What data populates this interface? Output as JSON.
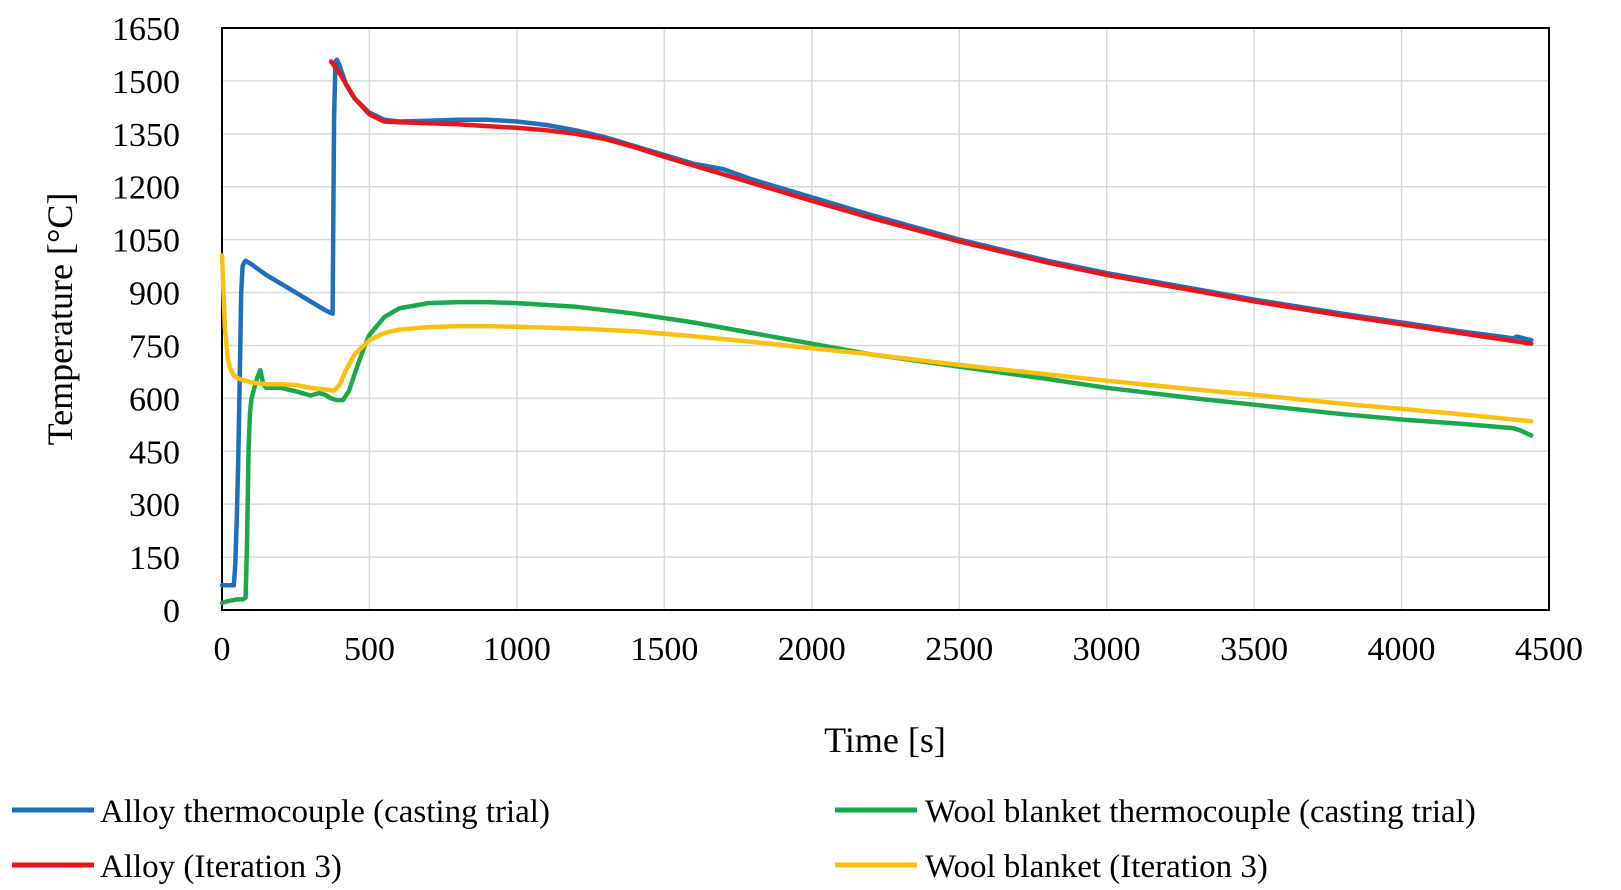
{
  "chart_data": {
    "type": "line",
    "title": "",
    "xlabel": "Time [s]",
    "ylabel": "Temperature [°C]",
    "xlim": [
      0,
      4500
    ],
    "ylim": [
      0,
      1650
    ],
    "xticks": [
      0,
      500,
      1000,
      1500,
      2000,
      2500,
      3000,
      3500,
      4000,
      4500
    ],
    "yticks": [
      0,
      150,
      300,
      450,
      600,
      750,
      900,
      1050,
      1200,
      1350,
      1500,
      1650
    ],
    "xtick_labels": [
      "0",
      "500",
      "1000",
      "1500",
      "2000",
      "2500",
      "3000",
      "3500",
      "4000",
      "4500"
    ],
    "ytick_labels": [
      "0",
      "150",
      "300",
      "450",
      "600",
      "750",
      "900",
      "1050",
      "1200",
      "1350",
      "1500",
      "1650"
    ],
    "grid": true,
    "legend_position": "bottom",
    "series": [
      {
        "name": "Alloy thermocouple (casting trial)",
        "color": "#1f6fbf",
        "x": [
          0,
          40,
          45,
          50,
          55,
          60,
          65,
          70,
          75,
          80,
          100,
          150,
          200,
          250,
          300,
          350,
          375,
          380,
          385,
          390,
          400,
          420,
          450,
          500,
          550,
          600,
          700,
          800,
          900,
          1000,
          1100,
          1200,
          1300,
          1400,
          1500,
          1600,
          1700,
          1800,
          2000,
          2200,
          2500,
          2800,
          3000,
          3300,
          3500,
          3800,
          4000,
          4200,
          4380,
          4390,
          4440
        ],
        "y": [
          70,
          70,
          130,
          250,
          420,
          650,
          900,
          975,
          985,
          990,
          980,
          950,
          925,
          900,
          875,
          850,
          840,
          1400,
          1555,
          1560,
          1540,
          1490,
          1450,
          1410,
          1390,
          1385,
          1387,
          1390,
          1390,
          1385,
          1375,
          1360,
          1340,
          1315,
          1290,
          1265,
          1250,
          1220,
          1170,
          1120,
          1050,
          990,
          955,
          910,
          880,
          840,
          815,
          790,
          770,
          775,
          765
        ]
      },
      {
        "name": "Alloy (Iteration 3)",
        "color": "#e8161c",
        "x": [
          370,
          400,
          450,
          500,
          550,
          600,
          700,
          800,
          900,
          1000,
          1100,
          1200,
          1300,
          1400,
          1500,
          1600,
          1700,
          1800,
          2000,
          2200,
          2500,
          2800,
          3000,
          3300,
          3500,
          3800,
          4000,
          4200,
          4440
        ],
        "y": [
          1555,
          1520,
          1450,
          1405,
          1385,
          1383,
          1380,
          1377,
          1372,
          1367,
          1360,
          1350,
          1335,
          1312,
          1285,
          1260,
          1235,
          1210,
          1160,
          1112,
          1045,
          985,
          950,
          905,
          875,
          835,
          810,
          785,
          755
        ]
      },
      {
        "name": "Wool blanket thermocouple (casting trial)",
        "color": "#1aa94a",
        "x": [
          0,
          20,
          50,
          70,
          80,
          85,
          90,
          95,
          100,
          110,
          120,
          130,
          140,
          150,
          200,
          250,
          300,
          330,
          350,
          370,
          390,
          410,
          430,
          450,
          480,
          500,
          550,
          600,
          700,
          800,
          900,
          1000,
          1200,
          1400,
          1600,
          1800,
          2000,
          2200,
          2500,
          2800,
          3000,
          3300,
          3500,
          3800,
          4000,
          4200,
          4380,
          4400,
          4440
        ],
        "y": [
          20,
          25,
          30,
          30,
          35,
          200,
          450,
          560,
          600,
          630,
          660,
          680,
          640,
          630,
          630,
          620,
          608,
          615,
          610,
          600,
          595,
          595,
          620,
          670,
          740,
          780,
          830,
          855,
          870,
          873,
          873,
          870,
          860,
          840,
          815,
          785,
          755,
          725,
          690,
          655,
          630,
          600,
          582,
          555,
          540,
          528,
          515,
          510,
          495
        ]
      },
      {
        "name": "Wool blanket (Iteration 3)",
        "color": "#fbbf10",
        "x": [
          0,
          10,
          20,
          30,
          40,
          50,
          60,
          80,
          100,
          150,
          200,
          250,
          300,
          350,
          380,
          400,
          420,
          450,
          500,
          550,
          600,
          700,
          800,
          900,
          1000,
          1200,
          1400,
          1600,
          1800,
          2000,
          2200,
          2500,
          2800,
          3000,
          3300,
          3500,
          3800,
          4000,
          4200,
          4440
        ],
        "y": [
          1005,
          800,
          710,
          680,
          665,
          660,
          655,
          650,
          645,
          640,
          640,
          638,
          630,
          625,
          622,
          640,
          680,
          725,
          765,
          785,
          795,
          802,
          805,
          805,
          803,
          798,
          790,
          776,
          760,
          742,
          725,
          695,
          668,
          650,
          625,
          610,
          585,
          570,
          555,
          535
        ]
      }
    ]
  },
  "legend": [
    {
      "label": "Alloy thermocouple (casting trial)",
      "color": "#1f6fbf"
    },
    {
      "label": "Wool blanket thermocouple (casting trial)",
      "color": "#1aa94a"
    },
    {
      "label": "Alloy (Iteration 3)",
      "color": "#e8161c"
    },
    {
      "label": "Wool blanket (Iteration 3)",
      "color": "#fbbf10"
    }
  ]
}
